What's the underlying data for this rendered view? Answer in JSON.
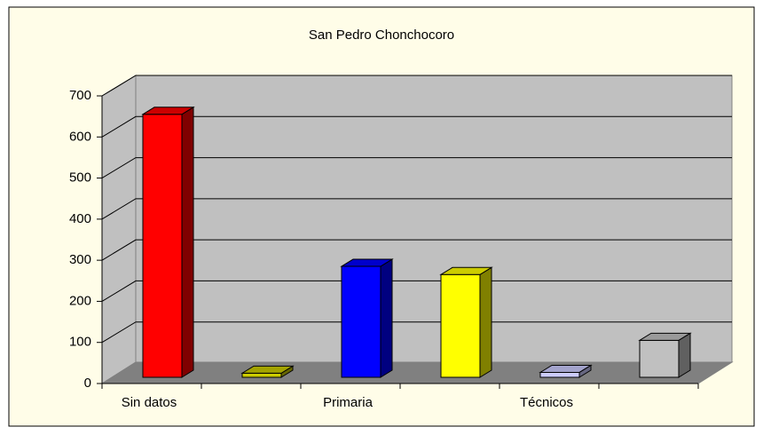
{
  "chart_data": {
    "type": "bar3d",
    "title": "San Pedro Chonchocoro",
    "categories": [
      "Sin datos",
      null,
      "Primaria",
      null,
      "Técnicos",
      null
    ],
    "values": [
      640,
      10,
      270,
      250,
      12,
      90
    ],
    "colors": [
      "#ff0000",
      "#cccc00",
      "#0000ff",
      "#ffff00",
      "#ccccff",
      "#c0c0c0"
    ],
    "ylim": [
      0,
      700
    ],
    "yticks": [
      0,
      100,
      200,
      300,
      400,
      500,
      600,
      700
    ],
    "grid": true
  }
}
